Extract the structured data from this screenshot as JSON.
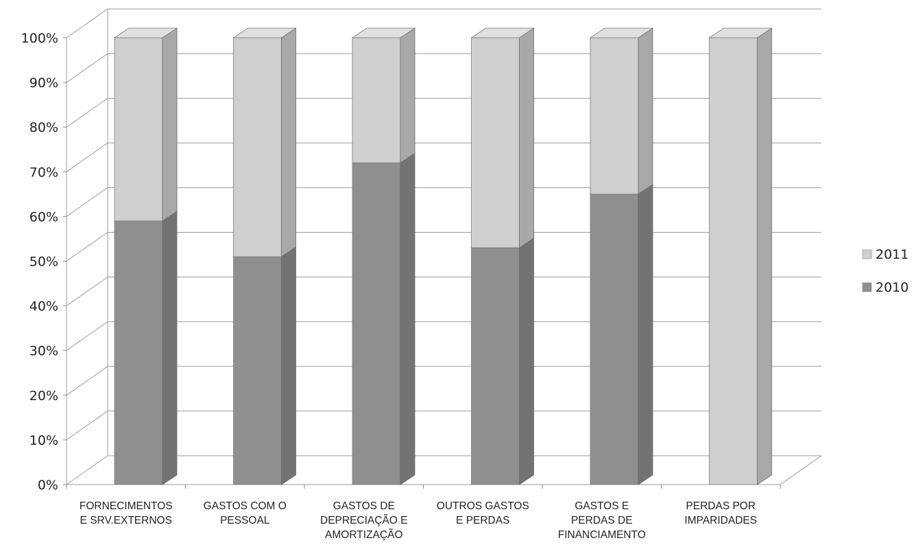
{
  "chart_data": {
    "type": "bar",
    "stacked": true,
    "percent": true,
    "title": "",
    "xlabel": "",
    "ylabel": "",
    "ylim": [
      0,
      100
    ],
    "y_ticks": [
      "0%",
      "10%",
      "20%",
      "30%",
      "40%",
      "50%",
      "60%",
      "70%",
      "80%",
      "90%",
      "100%"
    ],
    "grid": true,
    "legend_position": "right",
    "categories": [
      [
        "FORNECIMENTOS",
        "E SRV.EXTERNOS"
      ],
      [
        "GASTOS COM O",
        "PESSOAL"
      ],
      [
        "GASTOS DE",
        "DEPRECIAÇÃO E",
        "AMORTIZAÇÃO"
      ],
      [
        "OUTROS GASTOS",
        "E PERDAS"
      ],
      [
        "GASTOS E",
        "PERDAS DE",
        "FINANCIAMENTO"
      ],
      [
        "PERDAS POR",
        "IMPARIDADES"
      ]
    ],
    "series": [
      {
        "name": "2010",
        "values": [
          59,
          51,
          72,
          53,
          65,
          0
        ],
        "color": "#8f8f8f"
      },
      {
        "name": "2011",
        "values": [
          41,
          49,
          28,
          47,
          35,
          100
        ],
        "color": "#cfcfcf"
      }
    ],
    "legend": [
      "2011",
      "2010"
    ]
  }
}
